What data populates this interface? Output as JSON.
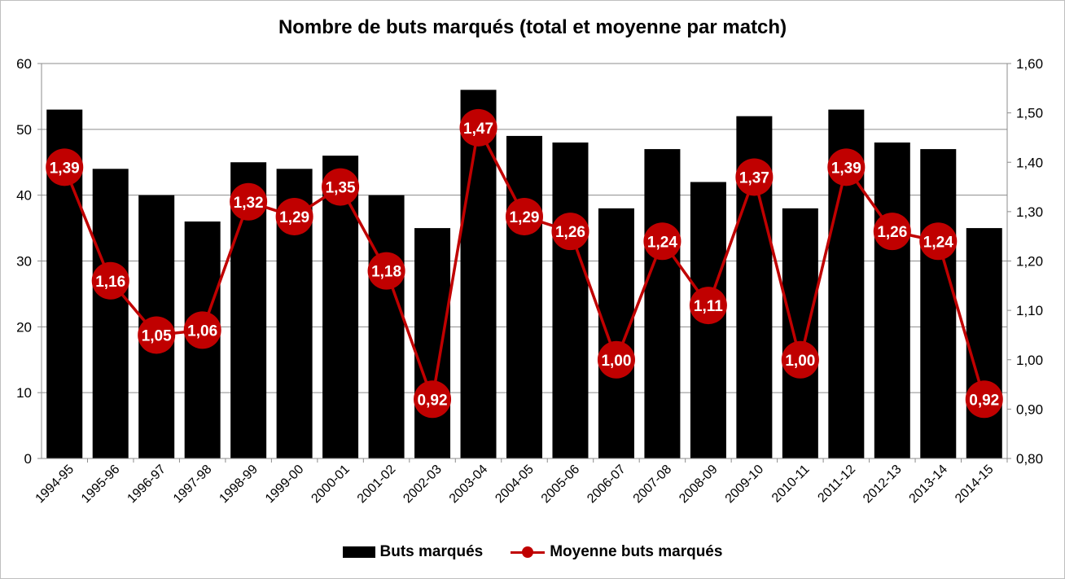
{
  "chart_data": {
    "type": "bar",
    "title": "Nombre de buts marqués (total et moyenne par match)",
    "categories": [
      "1994-95",
      "1995-96",
      "1996-97",
      "1997-98",
      "1998-99",
      "1999-00",
      "2000-01",
      "2001-02",
      "2002-03",
      "2003-04",
      "2004-05",
      "2005-06",
      "2006-07",
      "2007-08",
      "2008-09",
      "2009-10",
      "2010-11",
      "2011-12",
      "2012-13",
      "2013-14",
      "2014-15"
    ],
    "series": [
      {
        "name": "Buts marqués",
        "type": "bar",
        "axis": "left",
        "color": "#000000",
        "values": [
          53,
          44,
          40,
          36,
          45,
          44,
          46,
          40,
          35,
          56,
          49,
          48,
          38,
          47,
          42,
          52,
          38,
          53,
          48,
          47,
          35
        ]
      },
      {
        "name": "Moyenne buts marqués",
        "type": "line",
        "axis": "right",
        "color": "#c00000",
        "values": [
          1.39,
          1.16,
          1.05,
          1.06,
          1.32,
          1.29,
          1.35,
          1.18,
          0.92,
          1.47,
          1.29,
          1.26,
          1.0,
          1.24,
          1.11,
          1.37,
          1.0,
          1.39,
          1.26,
          1.24,
          0.92
        ],
        "labels": [
          "1,39",
          "1,16",
          "1,05",
          "1,06",
          "1,32",
          "1,29",
          "1,35",
          "1,18",
          "0,92",
          "1,47",
          "1,29",
          "1,26",
          "1,00",
          "1,24",
          "1,11",
          "1,37",
          "1,00",
          "1,39",
          "1,26",
          "1,24",
          "0,92"
        ]
      }
    ],
    "y_left": {
      "min": 0,
      "max": 60,
      "ticks": [
        "0",
        "10",
        "20",
        "30",
        "40",
        "50",
        "60"
      ]
    },
    "y_right": {
      "min": 0.8,
      "max": 1.6,
      "ticks": [
        "0,80",
        "0,90",
        "1,00",
        "1,10",
        "1,20",
        "1,30",
        "1,40",
        "1,50",
        "1,60"
      ]
    },
    "grid": true,
    "legend_position": "bottom",
    "xlabel": "",
    "ylabel": ""
  }
}
